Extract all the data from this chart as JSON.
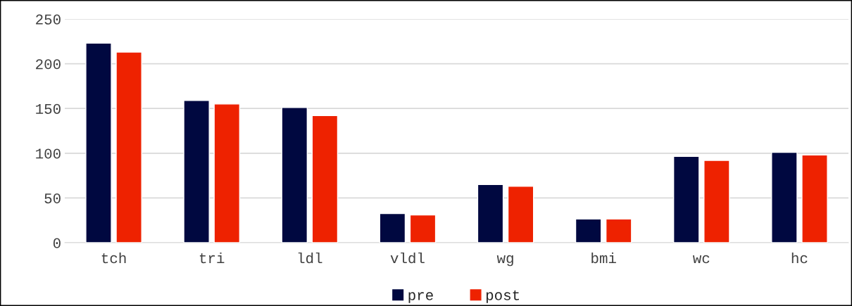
{
  "chart_data": {
    "type": "bar",
    "categories": [
      "tch",
      "tri",
      "ldl",
      "vldl",
      "wg",
      "bmi",
      "wc",
      "hc"
    ],
    "series": [
      {
        "name": "pre",
        "color": "#000840",
        "values": [
          223,
          159,
          151,
          32.5,
          65,
          26.5,
          96.5,
          101
        ]
      },
      {
        "name": "post",
        "color": "#ee2200",
        "values": [
          213,
          155,
          142,
          31,
          63,
          26.5,
          92,
          98
        ]
      }
    ],
    "ylim": [
      0,
      250
    ],
    "yticks": [
      0,
      50,
      100,
      150,
      200,
      250
    ],
    "grid": "y",
    "legend": "bottom"
  }
}
